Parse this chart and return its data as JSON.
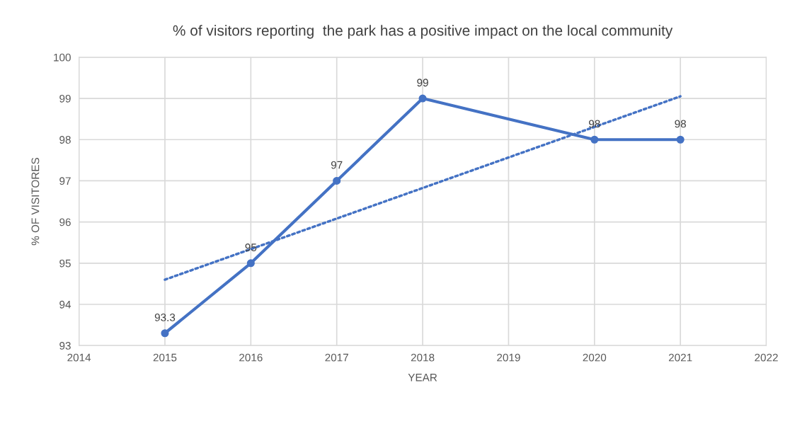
{
  "chart_data": {
    "type": "line",
    "title": "% of visitors reporting  the park has a positive impact on the local community",
    "xlabel": "YEAR",
    "ylabel": "% OF VISITORES",
    "series": [
      {
        "x": [
          2015,
          2016,
          2017,
          2018,
          2020,
          2021
        ],
        "values": [
          93.3,
          95,
          97,
          99,
          98,
          98
        ],
        "color": "#4472c4",
        "marker": "circle",
        "line_style": "solid",
        "value_labels": [
          "93.3",
          "95",
          "97",
          "99",
          "98",
          "98"
        ]
      },
      {
        "type": "line",
        "x": [
          2015,
          2021
        ],
        "values": [
          94.6,
          99.05
        ],
        "color": "#4472c4",
        "marker": "none",
        "line_style": "dotted"
      }
    ],
    "xlim": [
      2014,
      2022
    ],
    "xticks": [
      2014,
      2015,
      2016,
      2017,
      2018,
      2019,
      2020,
      2021,
      2022
    ],
    "ylim": [
      93,
      100
    ],
    "yticks": [
      93,
      94,
      95,
      96,
      97,
      98,
      99,
      100
    ],
    "grid": true
  }
}
